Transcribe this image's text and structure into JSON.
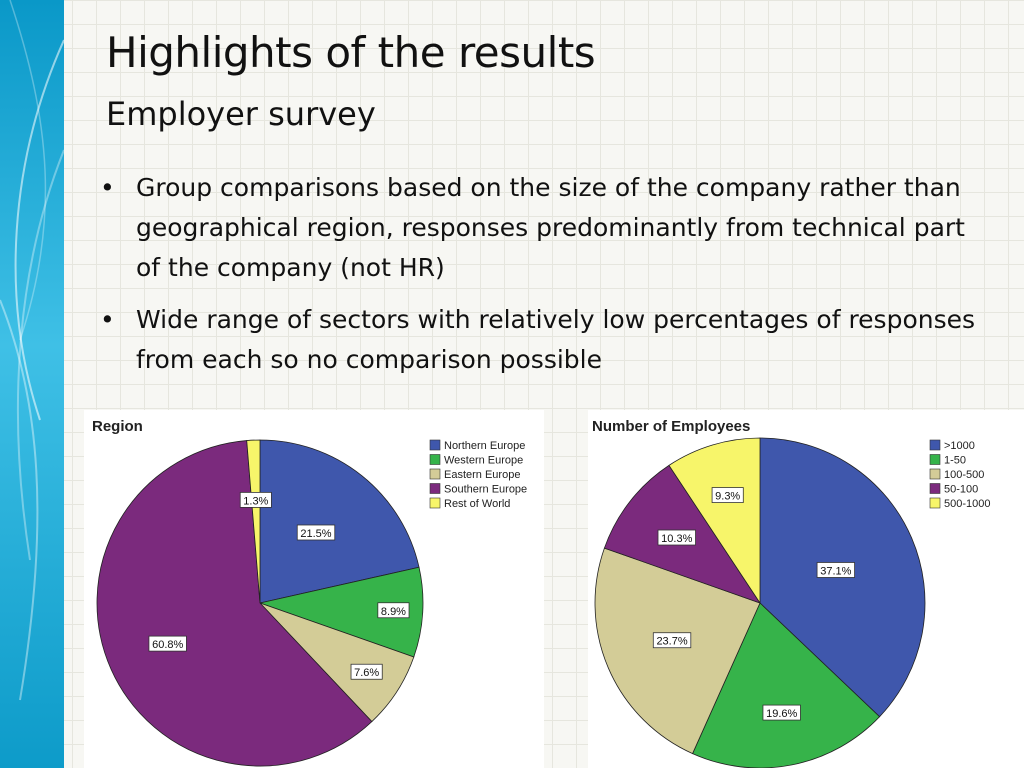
{
  "slide": {
    "title": "Highlights of the results",
    "subtitle": "Employer survey",
    "bullets": [
      "Group comparisons based on the size of the company rather than geographical region, responses predominantly from technical part of the company (not HR)",
      "Wide range of sectors with relatively low percentages of responses from each so no comparison possible"
    ],
    "bullet_glyph": "•"
  },
  "chart_data": [
    {
      "type": "pie",
      "title": "Region",
      "legend_position": "top-right",
      "categories": [
        "Northern Europe",
        "Western Europe",
        "Eastern Europe",
        "Southern Europe",
        "Rest of World"
      ],
      "values": [
        21.5,
        8.9,
        7.6,
        60.8,
        1.3
      ],
      "labels": [
        "21.5%",
        "8.9%",
        "7.6%",
        "60.8%",
        "1.3%"
      ],
      "colors": [
        "#3f57ac",
        "#36b34a",
        "#d3cc97",
        "#7b2a7d",
        "#f7f56a"
      ]
    },
    {
      "type": "pie",
      "title": "Number of Employees",
      "legend_position": "top-right",
      "categories": [
        ">1000",
        "1-50",
        "100-500",
        "50-100",
        "500-1000"
      ],
      "values": [
        37.1,
        19.6,
        23.7,
        10.3,
        9.3
      ],
      "labels": [
        "37.1%",
        "19.6%",
        "23.7%",
        "10.3%",
        "9.3%"
      ],
      "colors": [
        "#3f57ac",
        "#36b34a",
        "#d3cc97",
        "#7b2a7d",
        "#f7f56a"
      ]
    }
  ]
}
